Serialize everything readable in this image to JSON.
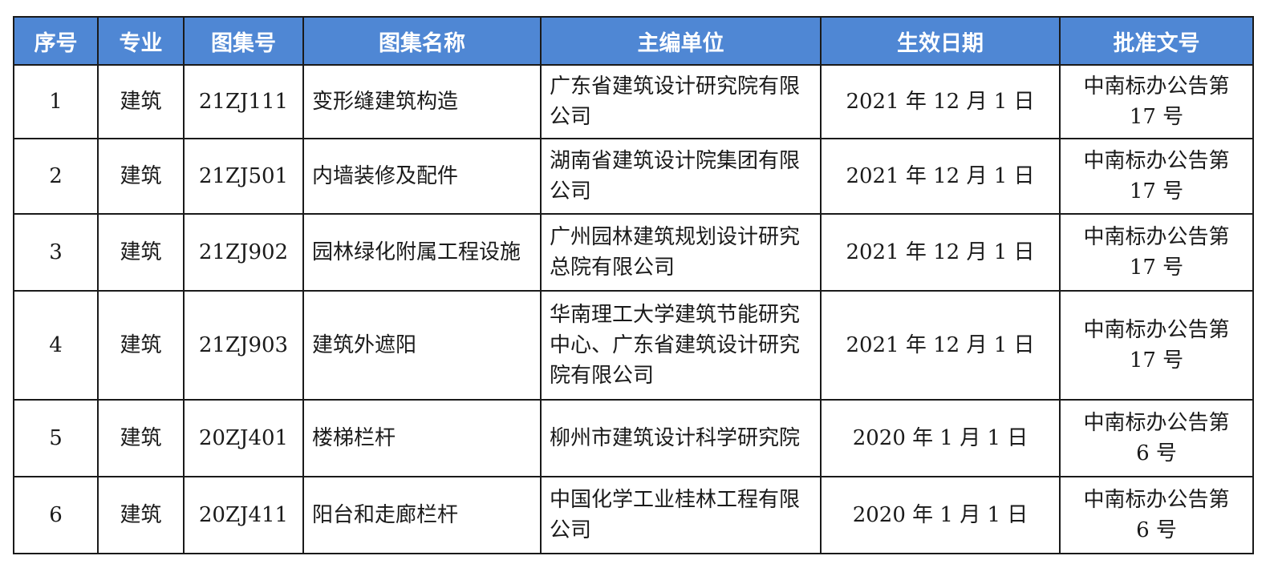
{
  "header_color": "#4f87d4",
  "columns": [
    "序号",
    "专业",
    "图集号",
    "图集名称",
    "主编单位",
    "生效日期",
    "批准文号"
  ],
  "rows": [
    {
      "no": "1",
      "major": "建筑",
      "code": "21ZJ111",
      "name": "变形缝建筑构造",
      "unit": "广东省建筑设计研究院有限公司",
      "date": "2021 年 12 月 1 日",
      "approval": "中南标办公告第 17 号"
    },
    {
      "no": "2",
      "major": "建筑",
      "code": "21ZJ501",
      "name": "内墙装修及配件",
      "unit": "湖南省建筑设计院集团有限公司",
      "date": "2021 年 12 月 1 日",
      "approval": "中南标办公告第 17 号"
    },
    {
      "no": "3",
      "major": "建筑",
      "code": "21ZJ902",
      "name": "园林绿化附属工程设施",
      "unit": "广州园林建筑规划设计研究总院有限公司",
      "date": "2021 年 12 月 1 日",
      "approval": "中南标办公告第 17 号"
    },
    {
      "no": "4",
      "major": "建筑",
      "code": "21ZJ903",
      "name": "建筑外遮阳",
      "unit": "华南理工大学建筑节能研究中心、广东省建筑设计研究院有限公司",
      "date": "2021 年 12 月 1 日",
      "approval": "中南标办公告第 17 号"
    },
    {
      "no": "5",
      "major": "建筑",
      "code": "20ZJ401",
      "name": "楼梯栏杆",
      "unit": "柳州市建筑设计科学研究院",
      "date": "2020 年 1 月 1 日",
      "approval": "中南标办公告第 6 号"
    },
    {
      "no": "6",
      "major": "建筑",
      "code": "20ZJ411",
      "name": "阳台和走廊栏杆",
      "unit": "中国化学工业桂林工程有限公司",
      "date": "2020 年 1 月 1 日",
      "approval": "中南标办公告第 6 号"
    }
  ]
}
